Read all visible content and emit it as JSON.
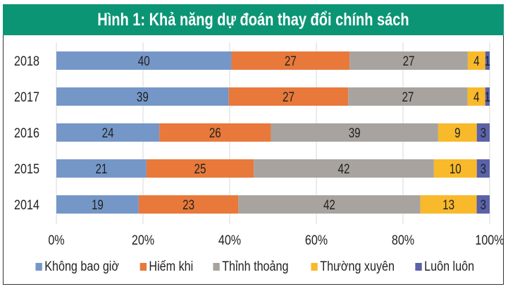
{
  "chart_data": {
    "type": "bar",
    "orientation": "horizontal",
    "stacked": "percent",
    "title": "Hình 1: Khả năng dự đoán thay đổi chính sách",
    "categories": [
      "2018",
      "2017",
      "2016",
      "2015",
      "2014"
    ],
    "series": [
      {
        "name": "Không bao giờ",
        "color": "#7597c8",
        "values": [
          40,
          39,
          24,
          21,
          19
        ]
      },
      {
        "name": "Hiếm khi",
        "color": "#e8793a",
        "values": [
          27,
          27,
          26,
          25,
          23
        ]
      },
      {
        "name": "Thỉnh thoảng",
        "color": "#a8a39e",
        "values": [
          27,
          27,
          39,
          42,
          42
        ]
      },
      {
        "name": "Thường xuyên",
        "color": "#f8b92b",
        "values": [
          4,
          4,
          9,
          10,
          13
        ]
      },
      {
        "name": "Luôn luôn",
        "color": "#5a62a8",
        "values": [
          1,
          1,
          3,
          3,
          3
        ]
      }
    ],
    "xlim": [
      0,
      100
    ],
    "xticks": [
      "0%",
      "20%",
      "40%",
      "60%",
      "80%",
      "100%"
    ],
    "grid": true,
    "legend": "bottom",
    "header_color": "#0b9575"
  }
}
